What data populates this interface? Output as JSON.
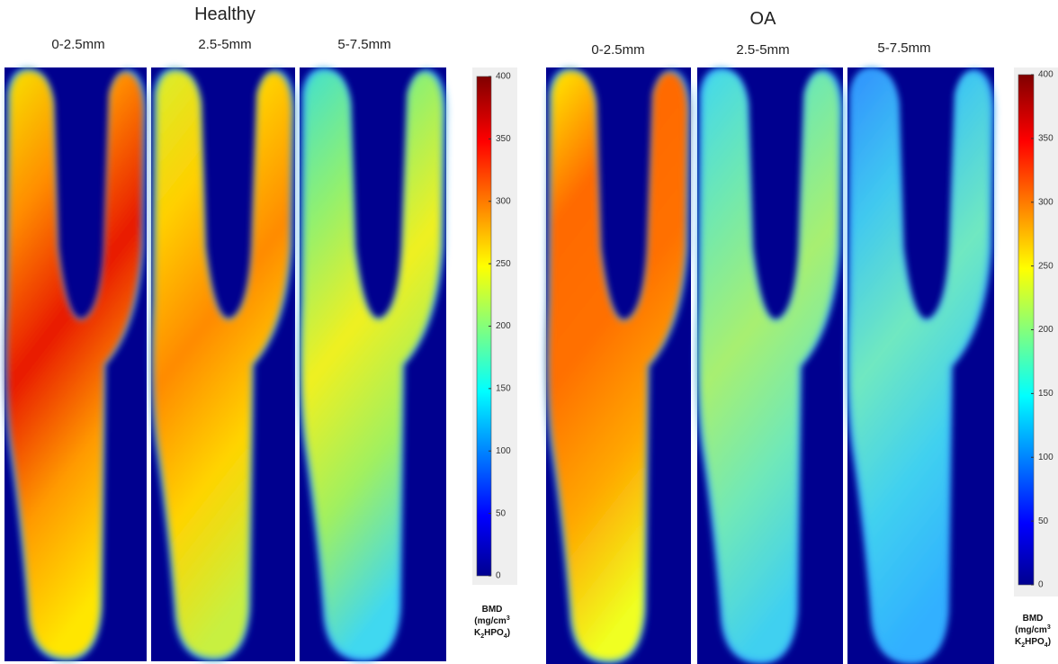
{
  "groups": [
    {
      "title": "Healthy",
      "panels": [
        "0-2.5mm",
        "2.5-5mm",
        "5-7.5mm"
      ],
      "colorbar": {
        "lim": [
          0,
          400
        ],
        "ticks": [
          0,
          50,
          100,
          150,
          200,
          250,
          300,
          350,
          400
        ],
        "label": {
          "line1": "BMD",
          "line2": "(mg/cm",
          "line2_sup": "3",
          "line3": [
            "K",
            "2",
            "HPO",
            "4",
            ")"
          ]
        }
      }
    },
    {
      "title": "OA",
      "panels": [
        "0-2.5mm",
        "2.5-5mm",
        "5-7.5mm"
      ],
      "colorbar": {
        "lim": [
          0,
          400
        ],
        "ticks": [
          0,
          50,
          100,
          150,
          200,
          250,
          300,
          350,
          400
        ],
        "label": {
          "line1": "BMD",
          "line2": "(mg/cm",
          "line2_sup": "3",
          "line3": [
            "K",
            "2",
            "HPO",
            "4",
            ")"
          ]
        }
      }
    }
  ]
}
